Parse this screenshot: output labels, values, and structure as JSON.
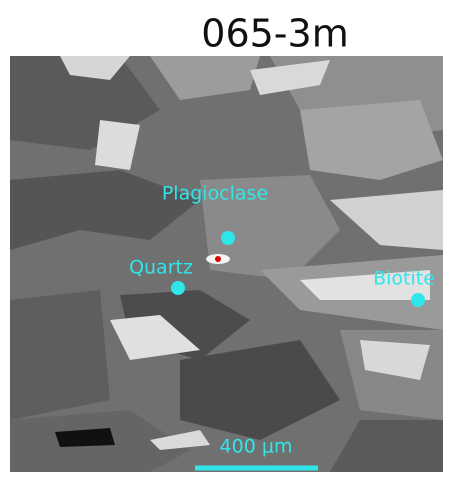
{
  "title": "065-3m",
  "labels": [
    {
      "text": "Plagioclase"
    },
    {
      "text": "Quartz"
    },
    {
      "text": "Biotite"
    }
  ],
  "scale_bar": {
    "label": "400 μm"
  }
}
